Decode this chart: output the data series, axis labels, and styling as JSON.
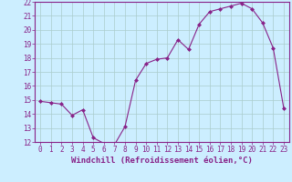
{
  "x": [
    0,
    1,
    2,
    3,
    4,
    5,
    6,
    7,
    8,
    9,
    10,
    11,
    12,
    13,
    14,
    15,
    16,
    17,
    18,
    19,
    20,
    21,
    22,
    23
  ],
  "y": [
    14.9,
    14.8,
    14.7,
    13.9,
    14.3,
    12.3,
    11.9,
    11.8,
    13.1,
    16.4,
    17.6,
    17.9,
    18.0,
    19.3,
    18.6,
    20.4,
    21.3,
    21.5,
    21.7,
    21.9,
    21.5,
    20.5,
    18.7,
    14.4
  ],
  "ylim": [
    12,
    22
  ],
  "xlim": [
    -0.5,
    23.5
  ],
  "yticks": [
    12,
    13,
    14,
    15,
    16,
    17,
    18,
    19,
    20,
    21,
    22
  ],
  "xticks": [
    0,
    1,
    2,
    3,
    4,
    5,
    6,
    7,
    8,
    9,
    10,
    11,
    12,
    13,
    14,
    15,
    16,
    17,
    18,
    19,
    20,
    21,
    22,
    23
  ],
  "xlabel": "Windchill (Refroidissement éolien,°C)",
  "line_color": "#882288",
  "marker": "D",
  "marker_size": 2,
  "bg_color": "#cceeff",
  "grid_color": "#aacccc",
  "tick_color": "#882288",
  "label_color": "#882288",
  "tick_fontsize": 5.5,
  "xlabel_fontsize": 6.5
}
